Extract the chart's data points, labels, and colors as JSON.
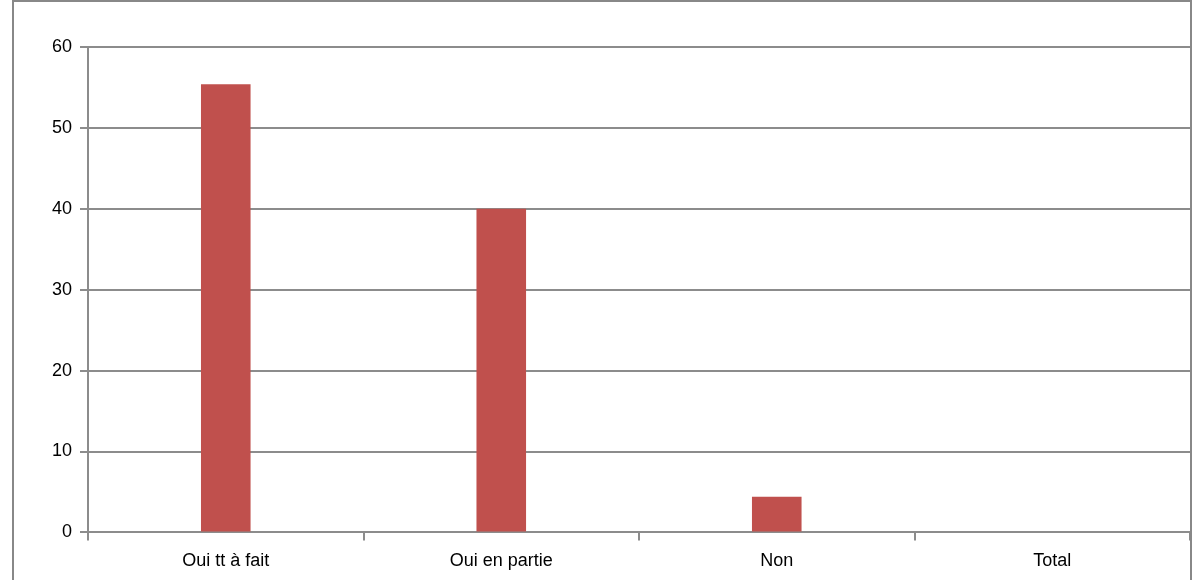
{
  "chart_data": {
    "type": "bar",
    "categories": [
      "Oui tt à fait",
      "Oui en partie",
      "Non",
      "Total"
    ],
    "values": [
      55.4,
      40,
      4.4,
      null
    ],
    "color": "#c0504d",
    "ylim": [
      0,
      60
    ],
    "yticks": [
      0,
      10,
      20,
      30,
      40,
      50,
      60
    ],
    "grid": "y"
  }
}
